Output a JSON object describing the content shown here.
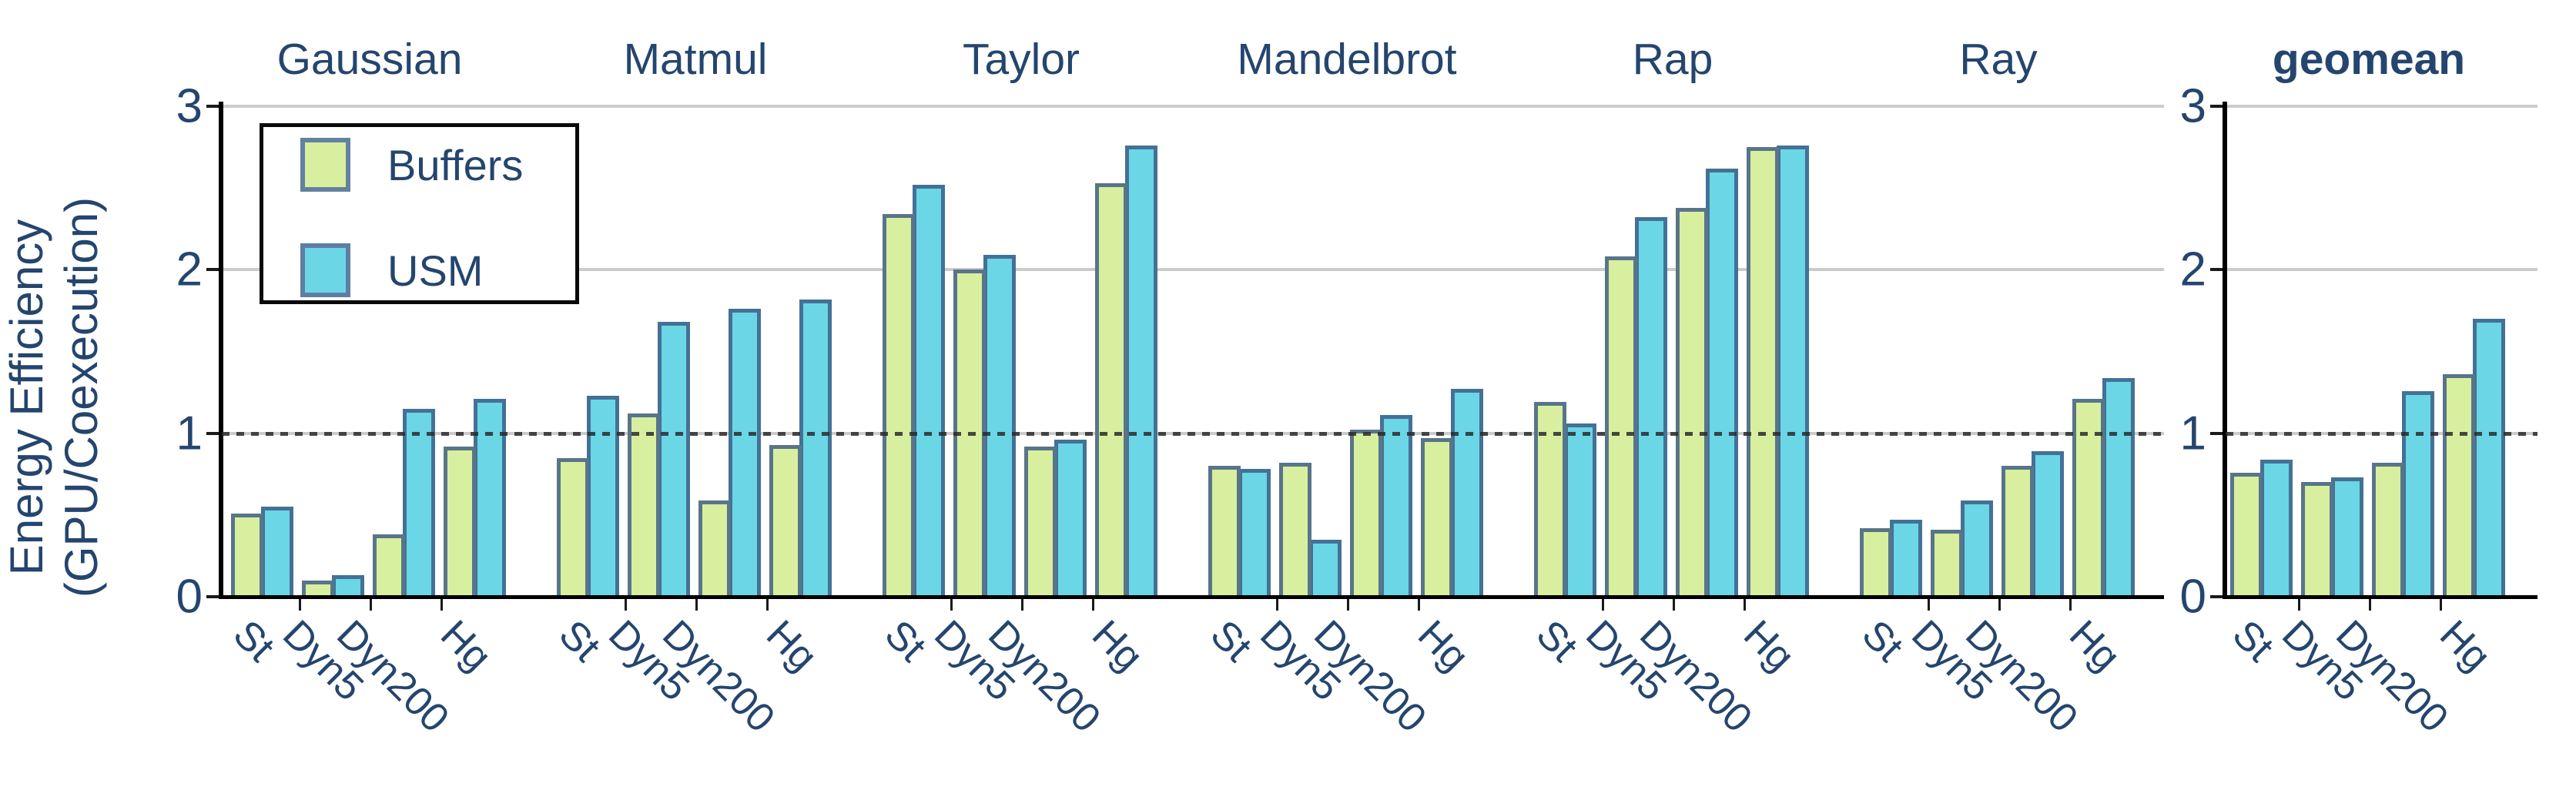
{
  "ylabel": {
    "line1": "Energy Efficiency",
    "line2": "(GPU/Coexecution)"
  },
  "legend": {
    "items": [
      {
        "label": "Buffers",
        "color": "#d8efa0"
      },
      {
        "label": "USM",
        "color": "#6bd6e5"
      }
    ]
  },
  "colors": {
    "buffers_fill": "#d8efa0",
    "usm_fill": "#6bd6e5",
    "bar_stroke": "#5e7aa0",
    "text_navy": "#24456e",
    "gridline": "#cbcbcb",
    "reference_line": "#2a2a2a"
  },
  "yticks": [
    "0",
    "1",
    "2",
    "3"
  ],
  "chart_data": {
    "type": "bar",
    "title": "",
    "ylabel": "Energy Efficiency (GPU/Coexecution)",
    "ylim": [
      0,
      3
    ],
    "grid": "horizontal",
    "reference_line_y": 1.0,
    "legend_position": "upper-left",
    "categories": [
      "St",
      "Dyn5",
      "Dyn200",
      "Hg"
    ],
    "panels": [
      {
        "name": "Gaussian",
        "bold": false,
        "series": [
          {
            "name": "Buffers",
            "values": [
              0.51,
              0.1,
              0.38,
              0.92
            ]
          },
          {
            "name": "USM",
            "values": [
              0.55,
              0.13,
              1.15,
              1.21
            ]
          }
        ]
      },
      {
        "name": "Matmul",
        "bold": false,
        "series": [
          {
            "name": "Buffers",
            "values": [
              0.85,
              1.12,
              0.59,
              0.93
            ]
          },
          {
            "name": "USM",
            "values": [
              1.23,
              1.68,
              1.76,
              1.82
            ]
          }
        ]
      },
      {
        "name": "Taylor",
        "bold": false,
        "series": [
          {
            "name": "Buffers",
            "values": [
              2.34,
              2.0,
              0.92,
              2.53
            ]
          },
          {
            "name": "USM",
            "values": [
              2.52,
              2.09,
              0.96,
              2.76
            ]
          }
        ]
      },
      {
        "name": "Mandelbrot",
        "bold": false,
        "series": [
          {
            "name": "Buffers",
            "values": [
              0.8,
              0.82,
              1.02,
              0.97
            ]
          },
          {
            "name": "USM",
            "values": [
              0.78,
              0.35,
              1.11,
              1.27
            ]
          }
        ]
      },
      {
        "name": "Rap",
        "bold": false,
        "series": [
          {
            "name": "Buffers",
            "values": [
              1.19,
              2.08,
              2.38,
              2.75
            ]
          },
          {
            "name": "USM",
            "values": [
              1.06,
              2.32,
              2.62,
              2.76
            ]
          }
        ]
      },
      {
        "name": "Ray",
        "bold": false,
        "series": [
          {
            "name": "Buffers",
            "values": [
              0.42,
              0.41,
              0.8,
              1.21
            ]
          },
          {
            "name": "USM",
            "values": [
              0.47,
              0.59,
              0.89,
              1.34
            ]
          }
        ]
      },
      {
        "name": "geomean",
        "bold": true,
        "own_axis": true,
        "series": [
          {
            "name": "Buffers",
            "values": [
              0.76,
              0.7,
              0.82,
              1.36
            ]
          },
          {
            "name": "USM",
            "values": [
              0.84,
              0.73,
              1.26,
              1.7
            ]
          }
        ]
      }
    ]
  }
}
